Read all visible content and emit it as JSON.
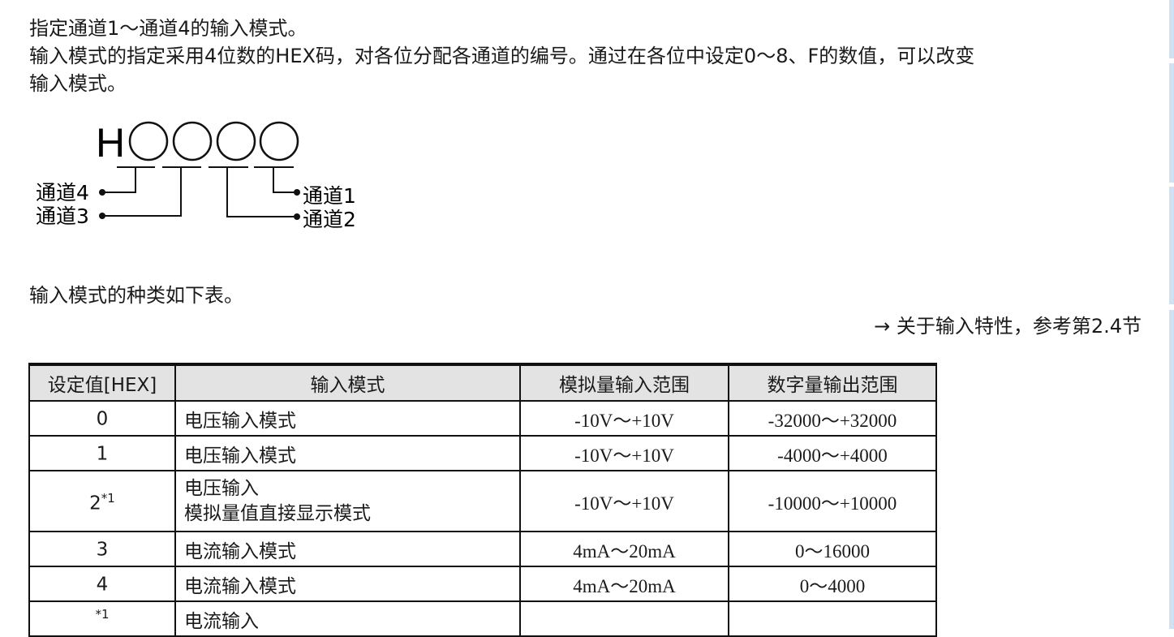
{
  "intro": [
    "指定通道1～通道4的输入模式。",
    "输入模式的指定采用4位数的HEX码，对各位分配各通道的编号。通过在各位中设定0～8、F的数值，可以改变",
    "输入模式。"
  ],
  "diagram": {
    "prefix": "H",
    "ch4": "通道4",
    "ch3": "通道3",
    "ch2": "通道2",
    "ch1": "通道1"
  },
  "table_intro": "输入模式的种类如下表。",
  "reference": "→  关于输入特性，参考第2.4节",
  "table": {
    "headers": [
      "设定值[HEX]",
      "输入模式",
      "模拟量输入范围",
      "数字量输出范围"
    ],
    "rows": [
      {
        "value": "0",
        "sup": "",
        "mode": "电压输入模式",
        "mode2": "",
        "analog": "-10V～+10V",
        "digital": "-32000～+32000"
      },
      {
        "value": "1",
        "sup": "",
        "mode": "电压输入模式",
        "mode2": "",
        "analog": "-10V～+10V",
        "digital": "-4000～+4000"
      },
      {
        "value": "2",
        "sup": "*1",
        "mode": "电压输入",
        "mode2": "模拟量值直接显示模式",
        "analog": "-10V～+10V",
        "digital": "-10000～+10000"
      },
      {
        "value": "3",
        "sup": "",
        "mode": "电流输入模式",
        "mode2": "",
        "analog": "4mA～20mA",
        "digital": "0～16000"
      },
      {
        "value": "4",
        "sup": "",
        "mode": "电流输入模式",
        "mode2": "",
        "analog": "4mA～20mA",
        "digital": "0～4000"
      },
      {
        "value": "",
        "sup": "*1",
        "mode": "电流输入",
        "mode2": "",
        "analog": "",
        "digital": ""
      }
    ]
  }
}
